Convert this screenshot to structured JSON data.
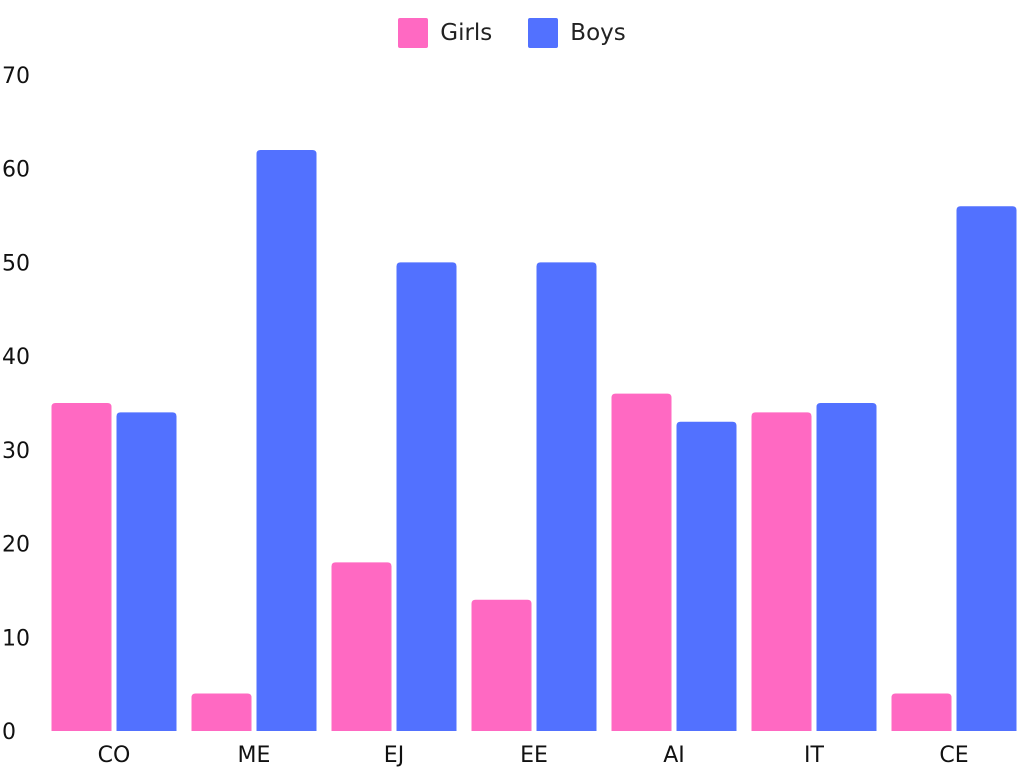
{
  "chart_data": {
    "type": "bar",
    "categories": [
      "CO",
      "ME",
      "EJ",
      "EE",
      "AI",
      "IT",
      "CE"
    ],
    "series": [
      {
        "name": "Girls",
        "color": "#FF69C2",
        "values": [
          35,
          4,
          18,
          14,
          36,
          34,
          4
        ]
      },
      {
        "name": "Boys",
        "color": "#5271FF",
        "values": [
          34,
          62,
          50,
          50,
          33,
          35,
          56
        ]
      }
    ],
    "title": "",
    "xlabel": "",
    "ylabel": "",
    "ylim": [
      0,
      70
    ],
    "yticks": [
      "0",
      "10",
      "20",
      "30",
      "40",
      "50",
      "60",
      "70"
    ],
    "grid": false,
    "legend": "top-center"
  }
}
